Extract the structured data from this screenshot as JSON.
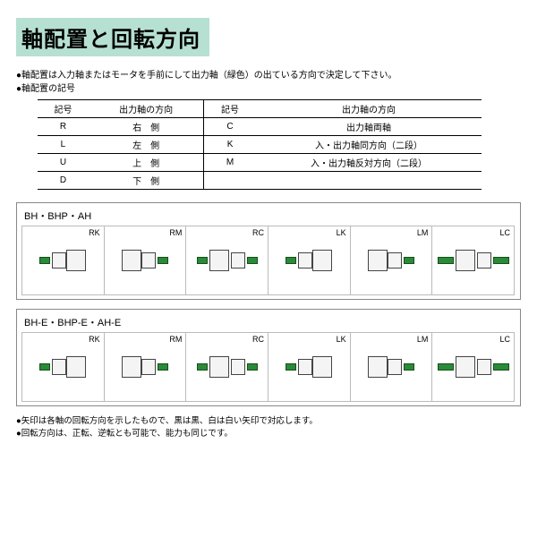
{
  "title": "軸配置と回転方向",
  "intro_line1": "軸配置は入力軸またはモータを手前にして出力軸（緑色）の出ている方向で決定して下さい。",
  "intro_line2": "軸配置の記号",
  "table": {
    "headers": {
      "code": "記号",
      "dir": "出力軸の方向"
    },
    "left": [
      {
        "code": "R",
        "dir": "右　側"
      },
      {
        "code": "L",
        "dir": "左　側"
      },
      {
        "code": "U",
        "dir": "上　側"
      },
      {
        "code": "D",
        "dir": "下　側"
      }
    ],
    "right": [
      {
        "code": "C",
        "dir": "出力軸両軸"
      },
      {
        "code": "K",
        "dir": "入・出力軸同方向（二段）"
      },
      {
        "code": "M",
        "dir": "入・出力軸反対方向（二段）"
      }
    ]
  },
  "groups": [
    {
      "title": "BH・BHP・AH",
      "cells": [
        "RK",
        "RM",
        "RC",
        "LK",
        "LM",
        "LC"
      ]
    },
    {
      "title": "BH-E・BHP-E・AH-E",
      "cells": [
        "RK",
        "RM",
        "RC",
        "LK",
        "LM",
        "LC"
      ]
    }
  ],
  "note1": "矢印は各軸の回転方向を示したもので、黒は黒、白は白い矢印で対応します。",
  "note2": "回転方向は、正転、逆転とも可能で、能力も同じです。",
  "colors": {
    "accent_bg": "#b6e0d2",
    "shaft_green": "#2a8a3a"
  }
}
